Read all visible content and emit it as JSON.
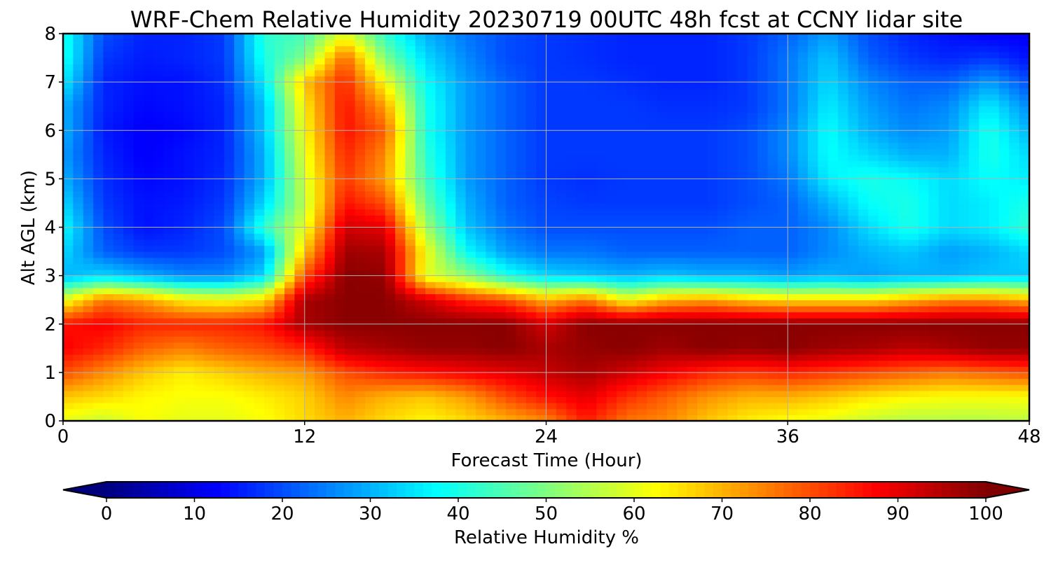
{
  "chart_data": {
    "type": "heatmap",
    "title": "WRF-Chem Relative Humidity 20230719 00UTC 48h fcst at CCNY lidar site",
    "xlabel": "Forecast Time (Hour)",
    "ylabel": "Alt AGL (km)",
    "xlim": [
      0,
      48
    ],
    "ylim": [
      0,
      8
    ],
    "x_ticks": [
      0,
      12,
      24,
      36,
      48
    ],
    "x_tick_labels": [
      "0",
      "12",
      "24",
      "36",
      "48"
    ],
    "y_ticks": [
      0,
      1,
      2,
      3,
      4,
      5,
      6,
      7,
      8
    ],
    "y_tick_labels": [
      "0",
      "1",
      "2",
      "3",
      "4",
      "5",
      "6",
      "7",
      "8"
    ],
    "grid": true,
    "colormap": "jet",
    "colorbar": {
      "label": "Relative Humidity %",
      "ticks": [
        0,
        10,
        20,
        30,
        40,
        50,
        60,
        70,
        80,
        90,
        100
      ],
      "tick_labels": [
        "0",
        "10",
        "20",
        "30",
        "40",
        "50",
        "60",
        "70",
        "80",
        "90",
        "100"
      ],
      "extend": "both",
      "orientation": "horizontal",
      "placement": "bottom"
    },
    "x": [
      0,
      2,
      4,
      6,
      8,
      10,
      12,
      14,
      16,
      18,
      20,
      22,
      24,
      26,
      28,
      30,
      32,
      34,
      36,
      38,
      40,
      42,
      44,
      46,
      48
    ],
    "y": [
      0,
      0.5,
      1,
      1.5,
      2,
      2.5,
      3,
      3.5,
      4,
      4.5,
      5,
      5.5,
      6,
      6.5,
      7,
      7.5,
      8
    ],
    "z": [
      [
        60,
        57,
        62,
        60,
        60,
        62,
        66,
        70,
        66,
        63,
        66,
        70,
        74,
        85,
        76,
        74,
        68,
        64,
        62,
        60,
        57,
        55,
        55,
        55,
        56
      ],
      [
        68,
        66,
        63,
        62,
        62,
        64,
        67,
        74,
        70,
        68,
        72,
        80,
        86,
        90,
        83,
        78,
        73,
        70,
        70,
        68,
        65,
        63,
        62,
        62,
        62
      ],
      [
        80,
        74,
        68,
        64,
        67,
        70,
        72,
        80,
        84,
        86,
        88,
        90,
        93,
        96,
        92,
        88,
        84,
        82,
        84,
        82,
        80,
        78,
        76,
        78,
        80
      ],
      [
        88,
        84,
        78,
        75,
        78,
        80,
        84,
        94,
        96,
        98,
        98,
        99,
        96,
        98,
        99,
        97,
        99,
        98,
        99,
        97,
        96,
        94,
        96,
        98,
        98
      ],
      [
        86,
        88,
        84,
        84,
        84,
        86,
        96,
        99,
        99,
        99,
        99,
        99,
        92,
        99,
        99,
        99,
        99,
        99,
        99,
        99,
        99,
        99,
        99,
        99,
        99
      ],
      [
        60,
        76,
        72,
        64,
        62,
        66,
        96,
        99,
        99,
        92,
        84,
        80,
        70,
        76,
        62,
        70,
        72,
        68,
        66,
        66,
        66,
        70,
        74,
        74,
        70
      ],
      [
        30,
        34,
        30,
        26,
        26,
        34,
        80,
        99,
        98,
        60,
        52,
        40,
        34,
        32,
        30,
        32,
        30,
        30,
        28,
        30,
        28,
        30,
        30,
        32,
        32
      ],
      [
        34,
        22,
        18,
        18,
        20,
        28,
        68,
        97,
        96,
        62,
        38,
        28,
        24,
        24,
        22,
        22,
        22,
        22,
        22,
        26,
        30,
        32,
        28,
        30,
        34
      ],
      [
        38,
        20,
        14,
        16,
        20,
        42,
        60,
        92,
        90,
        54,
        32,
        24,
        20,
        20,
        20,
        20,
        20,
        22,
        22,
        26,
        34,
        40,
        34,
        36,
        42
      ],
      [
        34,
        18,
        14,
        15,
        18,
        34,
        56,
        86,
        80,
        48,
        30,
        22,
        19,
        18,
        18,
        18,
        18,
        20,
        22,
        30,
        38,
        40,
        34,
        36,
        40
      ],
      [
        30,
        17,
        13,
        14,
        17,
        30,
        58,
        82,
        72,
        44,
        28,
        22,
        18,
        17,
        18,
        18,
        18,
        20,
        24,
        36,
        40,
        38,
        34,
        38,
        36
      ],
      [
        28,
        16,
        12,
        14,
        16,
        30,
        60,
        84,
        74,
        42,
        28,
        22,
        18,
        18,
        18,
        18,
        18,
        20,
        26,
        38,
        34,
        30,
        30,
        40,
        34
      ],
      [
        30,
        15,
        12,
        13,
        16,
        32,
        62,
        86,
        78,
        40,
        28,
        22,
        18,
        18,
        18,
        18,
        18,
        20,
        26,
        38,
        30,
        26,
        28,
        40,
        30
      ],
      [
        30,
        16,
        13,
        14,
        16,
        32,
        64,
        86,
        72,
        40,
        28,
        22,
        18,
        18,
        18,
        17,
        17,
        18,
        24,
        36,
        28,
        24,
        26,
        36,
        26
      ],
      [
        36,
        16,
        14,
        14,
        17,
        36,
        68,
        84,
        62,
        38,
        28,
        22,
        18,
        18,
        17,
        16,
        16,
        18,
        24,
        34,
        26,
        22,
        22,
        28,
        20
      ],
      [
        40,
        18,
        15,
        16,
        18,
        40,
        50,
        78,
        50,
        34,
        26,
        20,
        18,
        17,
        16,
        16,
        16,
        18,
        24,
        32,
        22,
        18,
        16,
        18,
        14
      ],
      [
        40,
        20,
        16,
        16,
        18,
        42,
        44,
        60,
        42,
        30,
        24,
        20,
        18,
        17,
        16,
        16,
        16,
        18,
        22,
        28,
        20,
        16,
        14,
        12,
        12
      ]
    ]
  }
}
